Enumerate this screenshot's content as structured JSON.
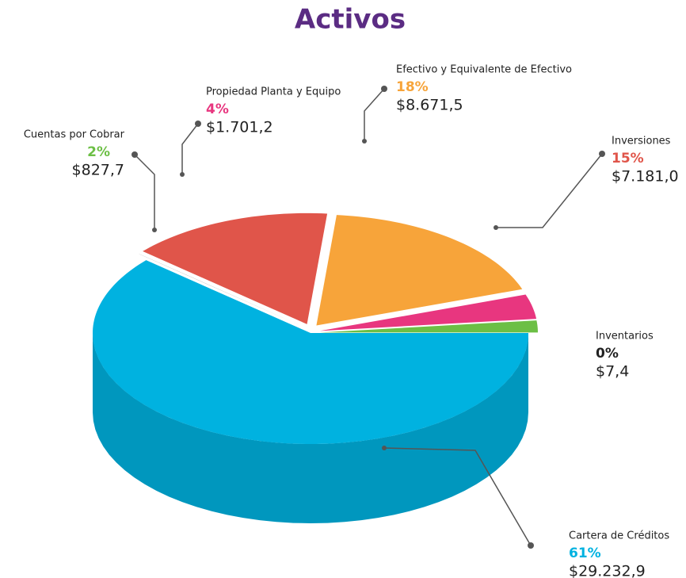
{
  "chart_data": {
    "type": "pie",
    "title": "Activos",
    "categories": [
      "Cartera de Créditos",
      "Inventarios",
      "Inversiones",
      "Efectivo y Equivalente de Efectivo",
      "Propiedad Planta y Equipo",
      "Cuentas por Cobrar"
    ],
    "values": [
      29232.9,
      7.4,
      7181.0,
      8671.5,
      1701.2,
      827.7
    ],
    "value_labels": [
      "$29.232,9",
      "$7,4",
      "$7.181,0",
      "$8.671,5",
      "$1.701,2",
      "$827,7"
    ],
    "percent_labels": [
      "61%",
      "0%",
      "15%",
      "18%",
      "4%",
      "2%"
    ],
    "colors": [
      "#00b2e0",
      "#222222",
      "#e0554a",
      "#f7a43a",
      "#e8367f",
      "#6cbf45"
    ]
  }
}
